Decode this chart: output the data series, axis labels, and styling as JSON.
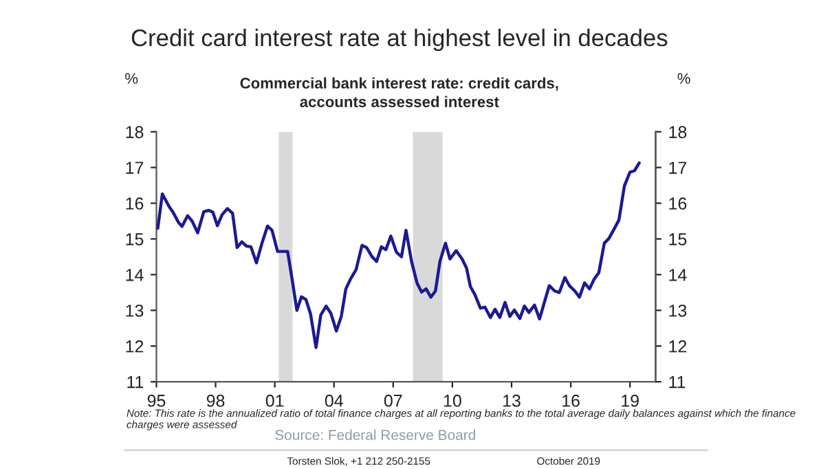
{
  "chart_data": {
    "type": "line",
    "title": "Credit card interest rate at highest level in decades",
    "subtitle": "Commercial bank interest rate: credit cards,\naccounts assessed interest",
    "ylabel": "%",
    "y2label": "%",
    "series": [
      {
        "color": "#1a1a96",
        "x": [
          1995.07,
          1995.3,
          1995.65,
          1995.84,
          1996.12,
          1996.3,
          1996.58,
          1996.81,
          1997.09,
          1997.4,
          1997.65,
          1997.86,
          1998.09,
          1998.33,
          1998.6,
          1998.86,
          1999.09,
          1999.33,
          1999.56,
          1999.79,
          2000.07,
          2000.35,
          2000.63,
          2000.86,
          2001.14,
          2001.42,
          2001.65,
          2001.88,
          2002.12,
          2002.35,
          2002.58,
          2002.81,
          2003.09,
          2003.33,
          2003.6,
          2003.84,
          2004.12,
          2004.37,
          2004.6,
          2004.84,
          2005.12,
          2005.42,
          2005.65,
          2005.93,
          2006.16,
          2006.4,
          2006.63,
          2006.88,
          2007.16,
          2007.42,
          2007.65,
          2007.93,
          2008.21,
          2008.44,
          2008.67,
          2008.91,
          2009.14,
          2009.37,
          2009.65,
          2009.88,
          2010.19,
          2010.49,
          2010.72,
          2010.91,
          2011.14,
          2011.42,
          2011.65,
          2011.93,
          2012.16,
          2012.4,
          2012.67,
          2012.91,
          2013.14,
          2013.42,
          2013.65,
          2013.88,
          2014.16,
          2014.42,
          2014.67,
          2014.91,
          2015.19,
          2015.42,
          2015.7,
          2015.93,
          2016.21,
          2016.44,
          2016.7,
          2016.95,
          2017.19,
          2017.42,
          2017.7,
          2017.93,
          2018.21,
          2018.44,
          2018.72,
          2019.0,
          2019.23,
          2019.47
        ],
        "values": [
          15.3,
          16.26,
          15.9,
          15.75,
          15.46,
          15.35,
          15.65,
          15.5,
          15.17,
          15.76,
          15.8,
          15.75,
          15.37,
          15.68,
          15.85,
          15.72,
          14.76,
          14.92,
          14.8,
          14.78,
          14.33,
          14.88,
          15.36,
          15.24,
          14.65,
          14.65,
          14.65,
          13.86,
          13.0,
          13.38,
          13.3,
          12.9,
          11.96,
          12.87,
          13.12,
          12.92,
          12.42,
          12.83,
          13.6,
          13.88,
          14.14,
          14.82,
          14.76,
          14.5,
          14.37,
          14.78,
          14.7,
          15.08,
          14.63,
          14.5,
          15.24,
          14.37,
          13.76,
          13.51,
          13.6,
          13.37,
          13.54,
          14.37,
          14.88,
          14.44,
          14.67,
          14.44,
          14.18,
          13.67,
          13.44,
          13.06,
          13.09,
          12.8,
          13.03,
          12.8,
          13.22,
          12.83,
          13.01,
          12.77,
          13.12,
          12.94,
          13.15,
          12.76,
          13.24,
          13.69,
          13.54,
          13.5,
          13.92,
          13.69,
          13.54,
          13.37,
          13.77,
          13.6,
          13.88,
          14.05,
          14.88,
          15.01,
          15.29,
          15.53,
          16.49,
          16.87,
          16.91,
          17.13
        ]
      }
    ],
    "xlim": [
      1995,
      2020.3
    ],
    "xticks": [
      {
        "value": 1995,
        "label": "95"
      },
      {
        "value": 1998,
        "label": "98"
      },
      {
        "value": 2001,
        "label": "01"
      },
      {
        "value": 2004,
        "label": "04"
      },
      {
        "value": 2007,
        "label": "07"
      },
      {
        "value": 2010,
        "label": "10"
      },
      {
        "value": 2013,
        "label": "13"
      },
      {
        "value": 2016,
        "label": "16"
      },
      {
        "value": 2019,
        "label": "19"
      }
    ],
    "ylim": [
      11,
      18
    ],
    "yticks": [
      11,
      12,
      13,
      14,
      15,
      16,
      17,
      18
    ],
    "y2lim": [
      11,
      18
    ],
    "y2ticks": [
      11,
      12,
      13,
      14,
      15,
      16,
      17,
      18
    ],
    "bands": [
      {
        "axis": "x",
        "from": 2001.2,
        "to": 2001.9,
        "color": "#d9d9d9"
      },
      {
        "axis": "x",
        "from": 2008.0,
        "to": 2009.5,
        "color": "#d9d9d9"
      }
    ],
    "grid": false,
    "legend": false,
    "line_style": "solid",
    "marker": "none",
    "annotations": [
      "Note: This rate is the annualized ratio of total finance charges at all reporting banks to the total average daily balances against which the finance charges were assessed",
      "Source: Federal Reserve Board",
      "Torsten Slok, +1 212 250-2155",
      "October 2019"
    ]
  }
}
